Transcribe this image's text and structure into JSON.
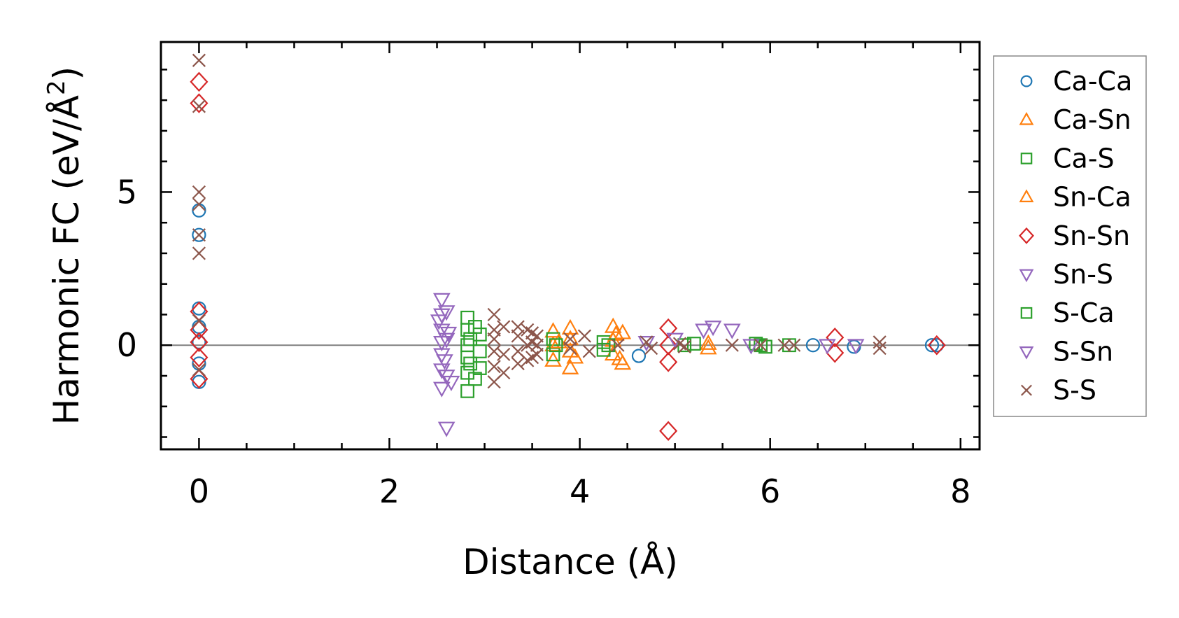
{
  "chart_data": {
    "type": "scatter",
    "title": "",
    "xlabel": "Distance (Å)",
    "ylabel_main": "Harmonic FC (eV/Å",
    "ylabel_sup": "2",
    "ylabel_close": ")",
    "xlim": [
      -0.4,
      8.2
    ],
    "ylim": [
      -3.4,
      9.9
    ],
    "xticks": [
      0,
      2,
      4,
      6,
      8
    ],
    "xtick_labels": [
      "0",
      "2",
      "4",
      "6",
      "8"
    ],
    "yticks": [
      0,
      5
    ],
    "ytick_labels": [
      "0",
      "5"
    ],
    "zero_line": true,
    "grid": false,
    "legend_position": "right outside",
    "series": [
      {
        "name": "Ca-Ca",
        "marker": "circle",
        "color": "#1f77b4",
        "x": [
          0,
          0,
          0,
          0,
          0,
          0,
          0,
          4.62,
          6.45,
          6.88,
          7.7,
          7.75
        ],
        "y": [
          4.4,
          3.6,
          1.2,
          0.6,
          -0.6,
          -1.2,
          0.1,
          -0.35,
          0,
          -0.05,
          0,
          0
        ]
      },
      {
        "name": "Ca-Sn",
        "marker": "triangle-up",
        "color": "#ff7f0e",
        "x": [
          3.72,
          3.72,
          3.72,
          3.9,
          3.9,
          3.9,
          3.9,
          4.35,
          4.35,
          4.35,
          4.45,
          4.45,
          5.35
        ],
        "y": [
          0.45,
          0,
          -0.5,
          0.55,
          0.2,
          -0.2,
          -0.75,
          0.6,
          0.15,
          -0.3,
          0.4,
          -0.6,
          -0.1
        ]
      },
      {
        "name": "Ca-S",
        "marker": "square",
        "color": "#2ca02c",
        "x": [
          2.82,
          2.82,
          2.82,
          2.82,
          2.82,
          2.82,
          2.95,
          2.95,
          2.95,
          3.72,
          3.72,
          4.25,
          4.25,
          5.1,
          5.85,
          5.95,
          6.2
        ],
        "y": [
          0.9,
          0.5,
          0,
          -0.4,
          -0.9,
          -1.5,
          0.35,
          -0.2,
          -0.75,
          0.2,
          -0.3,
          0.1,
          -0.15,
          0,
          0.05,
          -0.05,
          0
        ]
      },
      {
        "name": "Sn-Ca",
        "marker": "triangle-up",
        "color": "#ff7f0e",
        "x": [
          3.78,
          3.95,
          4.38,
          4.42,
          5.35
        ],
        "y": [
          0.1,
          -0.4,
          0.35,
          -0.45,
          0.05
        ]
      },
      {
        "name": "Sn-Sn",
        "marker": "diamond",
        "color": "#d62728",
        "x": [
          0,
          0,
          0,
          0,
          0,
          0,
          0,
          4.93,
          4.93,
          4.93,
          4.93,
          6.68,
          6.68,
          7.75
        ],
        "y": [
          8.6,
          7.9,
          1.1,
          0.1,
          -0.4,
          -1.1,
          0.5,
          0.55,
          0,
          -0.55,
          -2.8,
          0.25,
          -0.25,
          0
        ]
      },
      {
        "name": "Sn-S",
        "marker": "triangle-down",
        "color": "#9467bd",
        "x": [
          2.55,
          2.55,
          2.55,
          2.55,
          2.55,
          2.55,
          2.55,
          2.6,
          2.6,
          2.6,
          2.6,
          4.7,
          5.3,
          5.4,
          5.6,
          6.6,
          6.9
        ],
        "y": [
          1.5,
          1.0,
          0.5,
          0.1,
          -0.3,
          -0.8,
          -1.4,
          1.1,
          0.2,
          -1.0,
          -2.7,
          0.1,
          0.5,
          0.6,
          0.5,
          0,
          0
        ]
      },
      {
        "name": "S-Ca",
        "marker": "square",
        "color": "#2ca02c",
        "x": [
          2.85,
          2.85,
          2.9,
          2.9,
          3.75,
          4.3,
          5.2,
          5.9
        ],
        "y": [
          0.2,
          -0.6,
          0.6,
          -1.1,
          0,
          0,
          0.05,
          0
        ]
      },
      {
        "name": "S-Sn",
        "marker": "triangle-down",
        "color": "#9467bd",
        "x": [
          2.52,
          2.58,
          2.62,
          2.65,
          5.0,
          5.8
        ],
        "y": [
          0.8,
          -0.5,
          0.4,
          -1.2,
          0.2,
          0
        ]
      },
      {
        "name": "S-S",
        "marker": "x",
        "color": "#8c564b",
        "x": [
          0,
          0,
          0,
          0,
          0,
          0,
          0,
          0,
          3.1,
          3.1,
          3.1,
          3.1,
          3.1,
          3.1,
          3.2,
          3.2,
          3.2,
          3.35,
          3.35,
          3.35,
          3.35,
          3.45,
          3.45,
          3.45,
          3.5,
          3.5,
          3.5,
          3.55,
          3.55,
          3.55,
          3.9,
          3.9,
          4.05,
          4.1,
          4.4,
          4.7,
          4.75,
          5.05,
          5.1,
          5.6,
          5.9,
          6.15,
          6.25,
          7.15,
          7.15
        ],
        "y": [
          9.3,
          7.8,
          5.0,
          4.6,
          3.6,
          3.0,
          0.8,
          -0.8,
          1.0,
          0.5,
          0.2,
          -0.2,
          -0.7,
          -1.2,
          0.6,
          -0.3,
          -0.9,
          0.6,
          0.3,
          -0.2,
          -0.6,
          0.5,
          0,
          -0.5,
          0.4,
          0.1,
          -0.4,
          0.3,
          0,
          -0.3,
          0.2,
          -0.1,
          0.3,
          -0.2,
          0,
          0.1,
          -0.1,
          0.05,
          -0.05,
          0,
          0,
          0,
          0,
          0.1,
          -0.1
        ]
      }
    ]
  }
}
